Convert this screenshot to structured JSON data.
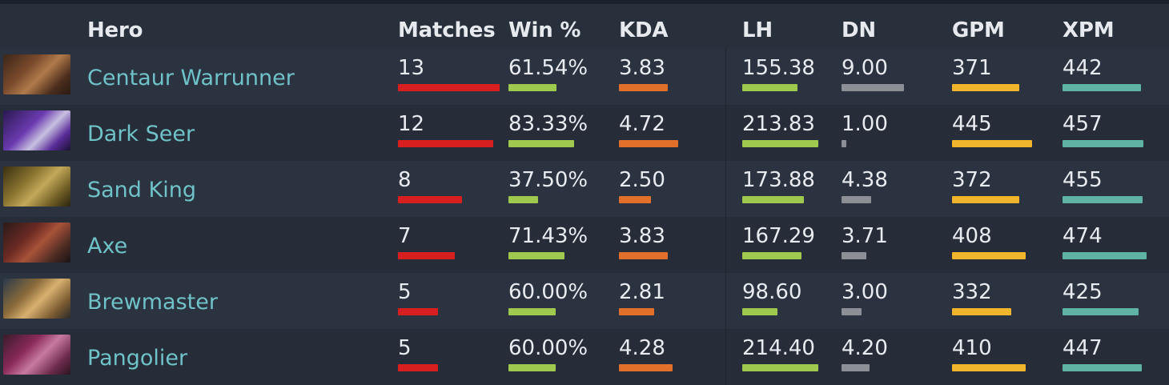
{
  "columns": {
    "hero": "Hero",
    "matches": "Matches",
    "win": "Win %",
    "kda": "KDA",
    "lh": "LH",
    "dn": "DN",
    "gpm": "GPM",
    "xpm": "XPM"
  },
  "colors": {
    "matches": "#d81f1f",
    "win": "#9fc84f",
    "kda": "#e2702a",
    "lh": "#9fc84f",
    "dn": "#8c9096",
    "gpm": "#f0b52d",
    "xpm": "#5fb3a4",
    "hero_link": "#6fc2c7"
  },
  "rows": [
    {
      "hero": "Centaur Warrunner",
      "matches": "13",
      "win": "61.54%",
      "kda": "3.83",
      "lh": "155.38",
      "dn": "9.00",
      "gpm": "371",
      "xpm": "442",
      "portrait": "centaur-warrunner-portrait",
      "fill": {
        "matches": 1.0,
        "win": 0.57,
        "kda": 0.55,
        "lh": 0.58,
        "dn": 0.77,
        "gpm": 0.71,
        "xpm": 0.86
      }
    },
    {
      "hero": "Dark Seer",
      "matches": "12",
      "win": "83.33%",
      "kda": "4.72",
      "lh": "213.83",
      "dn": "1.00",
      "gpm": "445",
      "xpm": "457",
      "portrait": "dark-seer-portrait",
      "fill": {
        "matches": 0.94,
        "win": 0.77,
        "kda": 0.67,
        "lh": 0.8,
        "dn": 0.06,
        "gpm": 0.85,
        "xpm": 0.89
      }
    },
    {
      "hero": "Sand King",
      "matches": "8",
      "win": "37.50%",
      "kda": "2.50",
      "lh": "173.88",
      "dn": "4.38",
      "gpm": "372",
      "xpm": "455",
      "portrait": "sand-king-portrait",
      "fill": {
        "matches": 0.63,
        "win": 0.35,
        "kda": 0.36,
        "lh": 0.65,
        "dn": 0.37,
        "gpm": 0.71,
        "xpm": 0.88
      }
    },
    {
      "hero": "Axe",
      "matches": "7",
      "win": "71.43%",
      "kda": "3.83",
      "lh": "167.29",
      "dn": "3.71",
      "gpm": "408",
      "xpm": "474",
      "portrait": "axe-portrait",
      "fill": {
        "matches": 0.56,
        "win": 0.66,
        "kda": 0.55,
        "lh": 0.62,
        "dn": 0.31,
        "gpm": 0.78,
        "xpm": 0.92
      }
    },
    {
      "hero": "Brewmaster",
      "matches": "5",
      "win": "60.00%",
      "kda": "2.81",
      "lh": "98.60",
      "dn": "3.00",
      "gpm": "332",
      "xpm": "425",
      "portrait": "brewmaster-portrait",
      "fill": {
        "matches": 0.39,
        "win": 0.56,
        "kda": 0.4,
        "lh": 0.37,
        "dn": 0.25,
        "gpm": 0.63,
        "xpm": 0.83
      }
    },
    {
      "hero": "Pangolier",
      "matches": "5",
      "win": "60.00%",
      "kda": "4.28",
      "lh": "214.40",
      "dn": "4.20",
      "gpm": "410",
      "xpm": "447",
      "portrait": "pangolier-portrait",
      "fill": {
        "matches": 0.39,
        "win": 0.56,
        "kda": 0.61,
        "lh": 0.8,
        "dn": 0.35,
        "gpm": 0.78,
        "xpm": 0.87
      }
    }
  ]
}
